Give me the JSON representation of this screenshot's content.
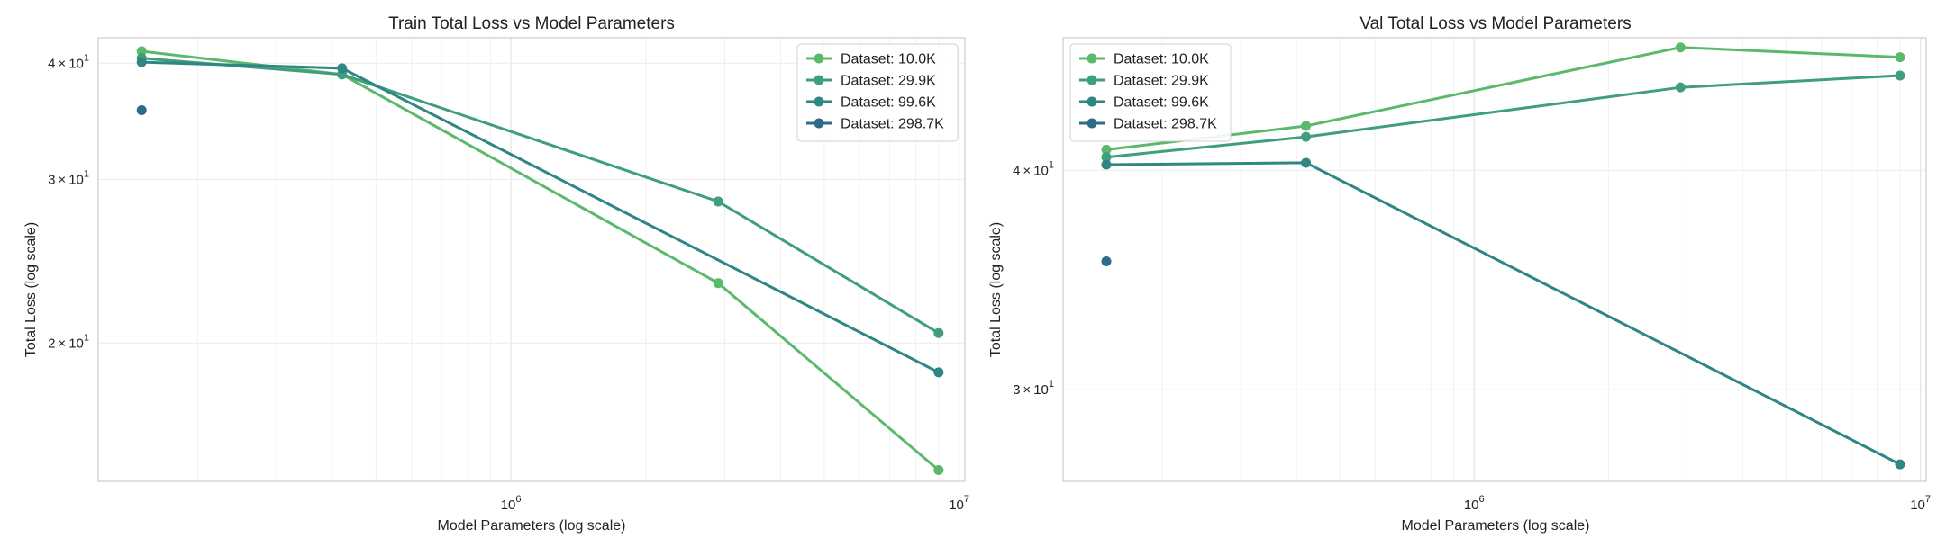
{
  "chart_data": [
    {
      "type": "line",
      "title": "Train Total Loss vs Model Parameters",
      "xlabel": "Model Parameters (log scale)",
      "ylabel": "Total Loss (log scale)",
      "xscale": "log",
      "yscale": "log",
      "xlim": [
        120000,
        10300000
      ],
      "ylim": [
        14.2,
        42.6
      ],
      "grid": true,
      "legend_position": "top-right",
      "x_ticks": [
        {
          "value": 1000000,
          "base": "10",
          "exp": "6"
        },
        {
          "value": 10000000,
          "base": "10",
          "exp": "7"
        }
      ],
      "y_ticks": [
        {
          "value": 20,
          "mant": "2",
          "exp": "1"
        },
        {
          "value": 30,
          "mant": "3",
          "exp": "1"
        },
        {
          "value": 40,
          "mant": "4",
          "exp": "1"
        }
      ],
      "series": [
        {
          "name": "Dataset: 10.0K",
          "color": "#5cb96b",
          "x": [
            150000,
            420000,
            2900000,
            9000000
          ],
          "y": [
            41.2,
            38.9,
            23.2,
            14.6
          ]
        },
        {
          "name": "Dataset: 29.9K",
          "color": "#3f9e7c",
          "x": [
            150000,
            420000,
            2900000,
            9000000
          ],
          "y": [
            40.5,
            38.9,
            28.4,
            20.5
          ]
        },
        {
          "name": "Dataset: 99.6K",
          "color": "#2f8685",
          "x": [
            150000,
            420000,
            9000000
          ],
          "y": [
            40.1,
            39.5,
            18.6
          ]
        },
        {
          "name": "Dataset: 298.7K",
          "color": "#2e6b86",
          "x": [
            150000
          ],
          "y": [
            35.6
          ]
        }
      ]
    },
    {
      "type": "line",
      "title": "Val Total Loss vs Model Parameters",
      "xlabel": "Model Parameters (log scale)",
      "ylabel": "Total Loss (log scale)",
      "xscale": "log",
      "yscale": "log",
      "xlim": [
        120000,
        10300000
      ],
      "ylim": [
        26.6,
        47.6
      ],
      "grid": true,
      "legend_position": "top-left",
      "x_ticks": [
        {
          "value": 1000000,
          "base": "10",
          "exp": "6"
        },
        {
          "value": 10000000,
          "base": "10",
          "exp": "7"
        }
      ],
      "y_ticks": [
        {
          "value": 30,
          "mant": "3",
          "exp": "1"
        },
        {
          "value": 40,
          "mant": "4",
          "exp": "1"
        }
      ],
      "series": [
        {
          "name": "Dataset: 10.0K",
          "color": "#5cb96b",
          "x": [
            150000,
            420000,
            2900000,
            9000000
          ],
          "y": [
            41.1,
            42.4,
            47.0,
            46.4
          ]
        },
        {
          "name": "Dataset: 29.9K",
          "color": "#3f9e7c",
          "x": [
            150000,
            420000,
            2900000,
            9000000
          ],
          "y": [
            40.7,
            41.8,
            44.6,
            45.3
          ]
        },
        {
          "name": "Dataset: 99.6K",
          "color": "#2f8685",
          "x": [
            150000,
            420000,
            9000000
          ],
          "y": [
            40.3,
            40.4,
            27.2
          ]
        },
        {
          "name": "Dataset: 298.7K",
          "color": "#2e6b86",
          "x": [
            150000
          ],
          "y": [
            35.5
          ]
        }
      ]
    }
  ]
}
